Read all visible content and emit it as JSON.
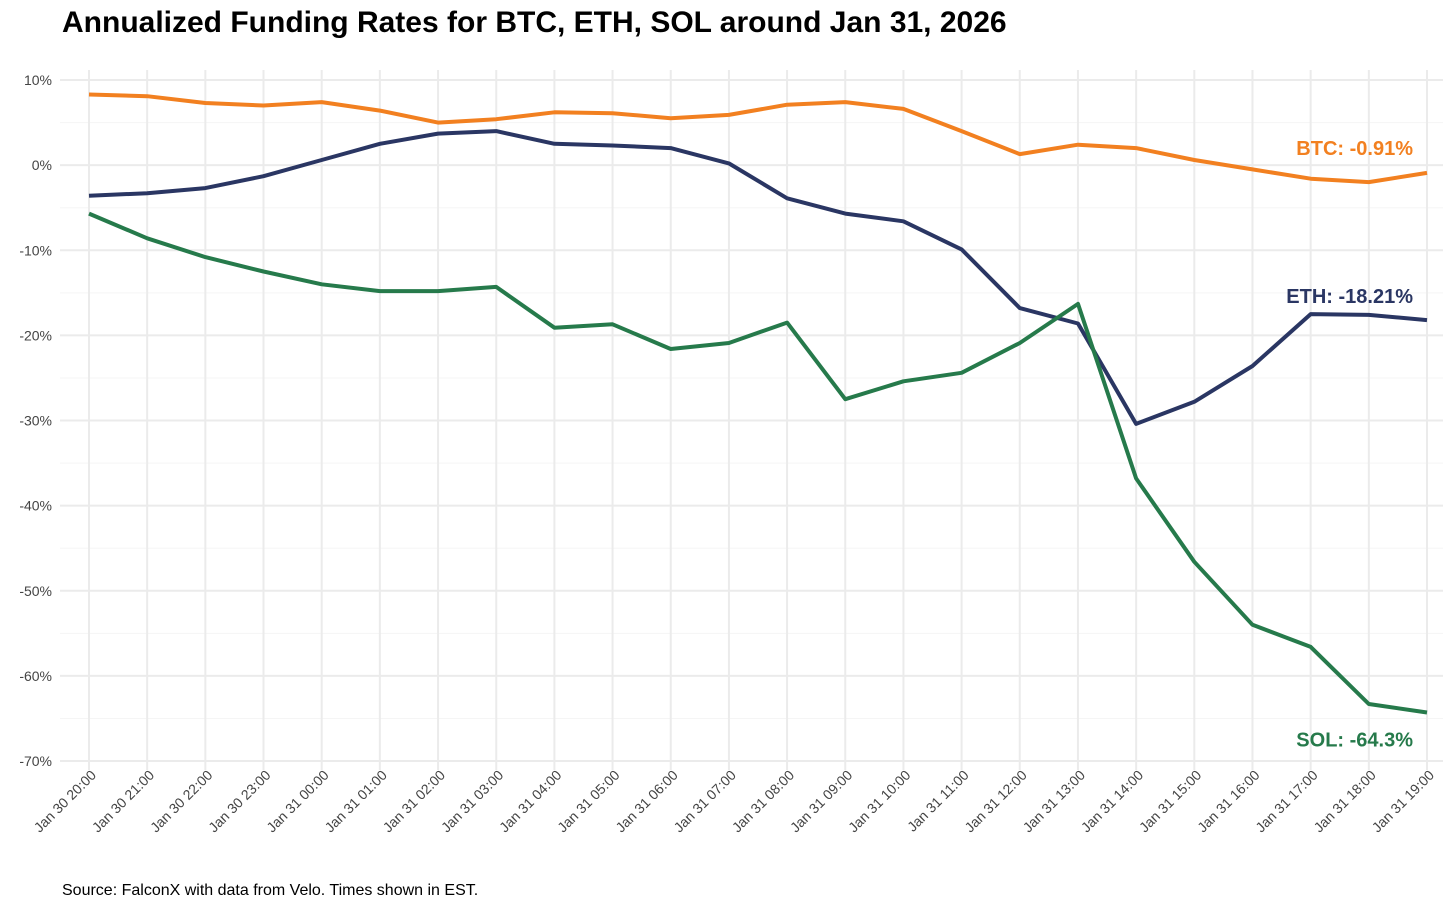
{
  "chart_data": {
    "type": "line",
    "title": "Annualized Funding Rates for BTC, ETH, SOL around Jan 31, 2026",
    "source": "Source: FalconX with data from Velo. Times shown in EST.",
    "xlabel": "",
    "ylabel": "",
    "ylim": [
      -70,
      10
    ],
    "y_ticks": [
      10,
      0,
      -10,
      -20,
      -30,
      -40,
      -50,
      -60,
      -70
    ],
    "y_tick_labels": [
      "10%",
      "0%",
      "-10%",
      "-20%",
      "-30%",
      "-40%",
      "-50%",
      "-60%",
      "-70%"
    ],
    "grid": true,
    "categories": [
      "Jan 30 20:00",
      "Jan 30 21:00",
      "Jan 30 22:00",
      "Jan 30 23:00",
      "Jan 31 00:00",
      "Jan 31 01:00",
      "Jan 31 02:00",
      "Jan 31 03:00",
      "Jan 31 04:00",
      "Jan 31 05:00",
      "Jan 31 06:00",
      "Jan 31 07:00",
      "Jan 31 08:00",
      "Jan 31 09:00",
      "Jan 31 10:00",
      "Jan 31 11:00",
      "Jan 31 12:00",
      "Jan 31 13:00",
      "Jan 31 14:00",
      "Jan 31 15:00",
      "Jan 31 16:00",
      "Jan 31 17:00",
      "Jan 31 18:00",
      "Jan 31 19:00"
    ],
    "series": [
      {
        "name": "BTC",
        "color": "#f28020",
        "end_label": "BTC: -0.91%",
        "values": [
          8.3,
          8.1,
          7.3,
          7.0,
          7.4,
          6.4,
          5.0,
          5.4,
          6.2,
          6.1,
          5.5,
          5.9,
          7.1,
          7.4,
          6.6,
          4.0,
          1.3,
          2.4,
          2.0,
          0.6,
          -0.5,
          -1.6,
          -2.0,
          -0.91
        ]
      },
      {
        "name": "ETH",
        "color": "#2a3663",
        "end_label": "ETH: -18.21%",
        "values": [
          -3.6,
          -3.3,
          -2.7,
          -1.3,
          0.6,
          2.5,
          3.7,
          4.0,
          2.5,
          2.3,
          2.0,
          0.2,
          -3.9,
          -5.7,
          -6.6,
          -9.9,
          -16.8,
          -18.6,
          -30.4,
          -27.8,
          -23.6,
          -17.5,
          -17.6,
          -18.21
        ]
      },
      {
        "name": "SOL",
        "color": "#267a4b",
        "end_label": "SOL: -64.3%",
        "values": [
          -5.7,
          -8.6,
          -10.8,
          -12.5,
          -14.0,
          -14.8,
          -14.8,
          -14.3,
          -19.1,
          -18.7,
          -21.6,
          -20.9,
          -18.5,
          -27.5,
          -25.4,
          -24.4,
          -20.9,
          -16.3,
          -36.8,
          -46.6,
          -54.0,
          -56.6,
          -63.3,
          -64.3
        ]
      }
    ]
  }
}
